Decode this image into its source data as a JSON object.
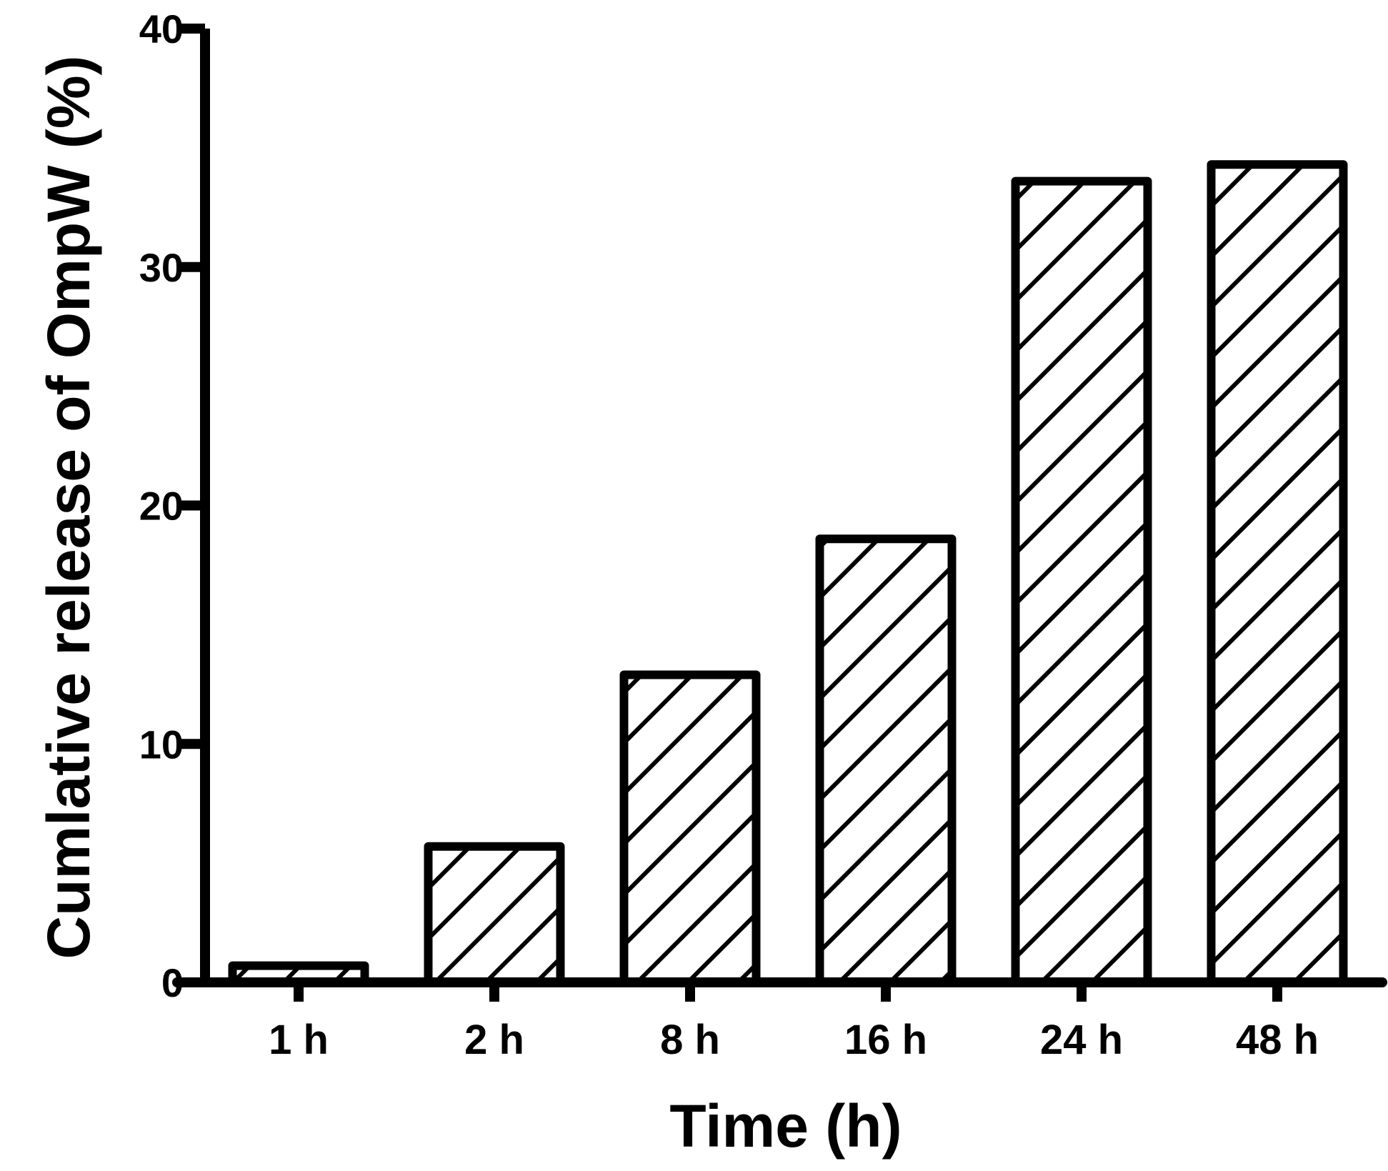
{
  "chart_data": {
    "type": "bar",
    "title": "",
    "xlabel": "Time (h)",
    "ylabel": "Cumlative release of OmpW (%)",
    "categories": [
      "1 h",
      "2 h",
      "8 h",
      "16 h",
      "24 h",
      "48 h"
    ],
    "values": [
      0.7,
      5.7,
      12.9,
      18.6,
      33.6,
      34.3
    ],
    "ylim": [
      0,
      40
    ],
    "yticks": [
      "0",
      "10",
      "20",
      "30",
      "40"
    ],
    "grid": false,
    "legend": "none",
    "bar_fill": "diagonal hatch",
    "colors": {
      "stroke": "#000000",
      "background": "#ffffff"
    }
  }
}
